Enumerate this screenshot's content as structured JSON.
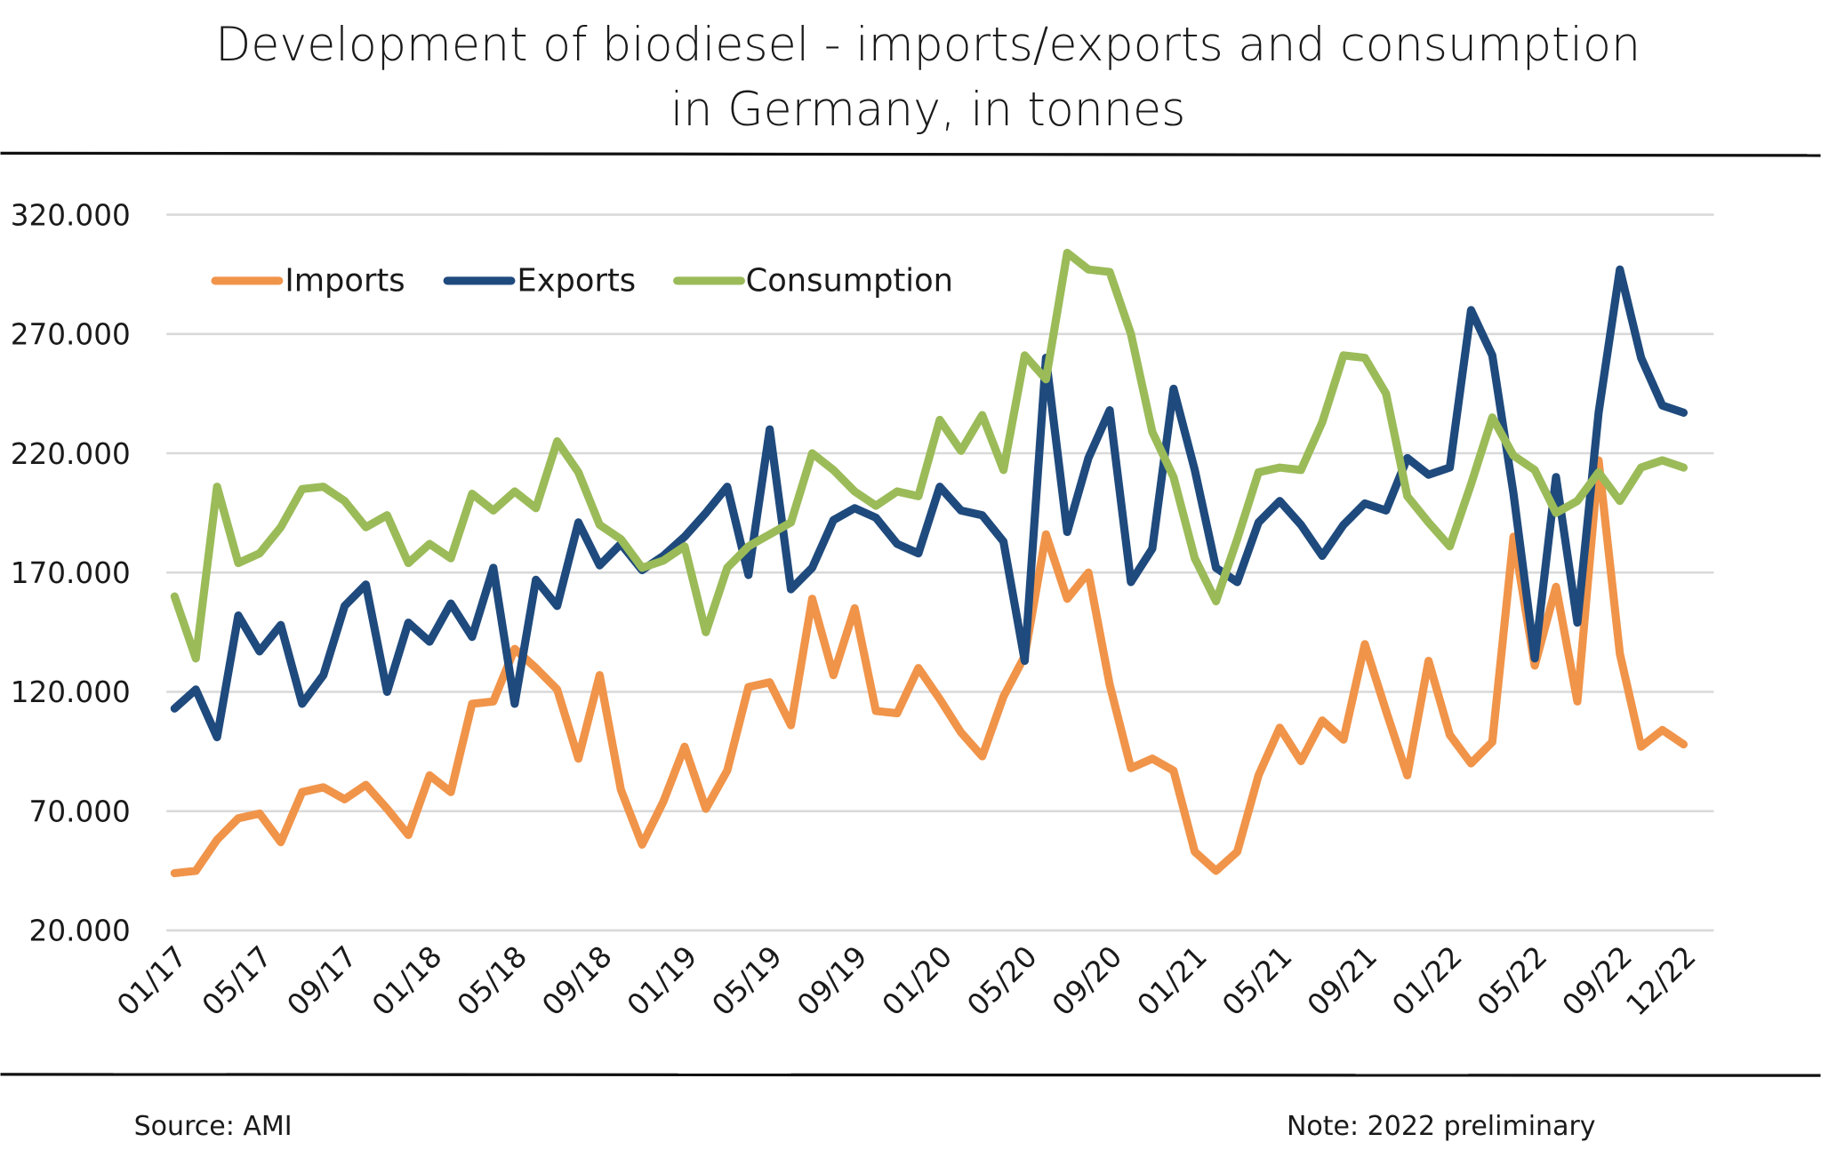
{
  "chart_data": {
    "type": "line",
    "title": "Development of biodiesel - imports/exports and consumption",
    "subtitle": "in Germany, in tonnes",
    "xlabel": "",
    "ylabel": "",
    "ylim": [
      20000,
      320000
    ],
    "yticks": [
      20000,
      70000,
      120000,
      170000,
      220000,
      270000,
      320000
    ],
    "ytick_labels": [
      "20.000",
      "70.000",
      "120.000",
      "170.000",
      "220.000",
      "270.000",
      "320.000"
    ],
    "grid": true,
    "legend_position": "top-left",
    "x_count": 72,
    "x_tick_indices": [
      0,
      4,
      8,
      12,
      16,
      20,
      24,
      28,
      32,
      36,
      40,
      44,
      48,
      52,
      56,
      60,
      64,
      68,
      71
    ],
    "x_tick_labels": [
      "01/17",
      "05/17",
      "09/17",
      "01/18",
      "05/18",
      "09/18",
      "01/19",
      "05/19",
      "09/19",
      "01/20",
      "05/20",
      "09/20",
      "01/21",
      "05/21",
      "09/21",
      "01/22",
      "05/22",
      "09/22",
      "12/22"
    ],
    "series": [
      {
        "name": "Imports",
        "color": "#F0944A",
        "values": [
          44000,
          45000,
          58000,
          67000,
          69000,
          57000,
          78000,
          80000,
          75000,
          81000,
          71000,
          60000,
          85000,
          78000,
          115000,
          116000,
          138000,
          130000,
          121000,
          92000,
          127000,
          79000,
          56000,
          74000,
          97000,
          71000,
          87000,
          122000,
          124000,
          106000,
          159000,
          127000,
          155000,
          112000,
          111000,
          130000,
          117000,
          103000,
          93000,
          118000,
          135000,
          186000,
          159000,
          170000,
          123000,
          88000,
          92000,
          87000,
          53000,
          45000,
          53000,
          85000,
          105000,
          91000,
          108000,
          100000,
          140000,
          112000,
          85000,
          133000,
          102000,
          90000,
          99000,
          185000,
          131000,
          164000,
          116000,
          217000,
          136000,
          97000,
          104000,
          98000
        ]
      },
      {
        "name": "Exports",
        "color": "#1F4A7D",
        "values": [
          113000,
          121000,
          101000,
          152000,
          137000,
          148000,
          115000,
          127000,
          156000,
          165000,
          120000,
          149000,
          141000,
          157000,
          143000,
          172000,
          115000,
          167000,
          156000,
          191000,
          173000,
          182000,
          171000,
          177000,
          185000,
          195000,
          206000,
          169000,
          230000,
          163000,
          172000,
          192000,
          197000,
          193000,
          182000,
          178000,
          206000,
          196000,
          194000,
          183000,
          133000,
          260000,
          187000,
          218000,
          238000,
          166000,
          180000,
          247000,
          213000,
          172000,
          166000,
          191000,
          200000,
          190000,
          177000,
          190000,
          199000,
          196000,
          218000,
          211000,
          214000,
          280000,
          261000,
          203000,
          134000,
          210000,
          149000,
          237000,
          297000,
          260000,
          240000,
          237000
        ]
      },
      {
        "name": "Consumption",
        "color": "#9BBB59",
        "values": [
          160000,
          134000,
          206000,
          174000,
          178000,
          189000,
          205000,
          206000,
          200000,
          189000,
          194000,
          174000,
          182000,
          176000,
          203000,
          196000,
          204000,
          197000,
          225000,
          212000,
          190000,
          184000,
          172000,
          175000,
          181000,
          145000,
          172000,
          181000,
          186000,
          191000,
          220000,
          213000,
          204000,
          198000,
          204000,
          202000,
          234000,
          221000,
          236000,
          213000,
          261000,
          251000,
          304000,
          297000,
          296000,
          270000,
          229000,
          210000,
          176000,
          158000,
          184000,
          212000,
          214000,
          213000,
          233000,
          261000,
          260000,
          245000,
          202000,
          191000,
          181000,
          207000,
          235000,
          219000,
          213000,
          195000,
          200000,
          212000,
          200000,
          214000,
          217000,
          214000
        ]
      }
    ]
  },
  "footer": {
    "source": "Source:  AMI",
    "note": "Note: 2022 preliminary"
  }
}
